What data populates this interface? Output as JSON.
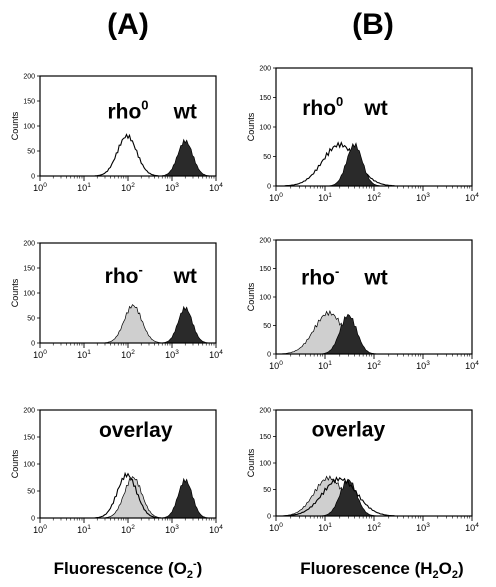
{
  "figure": {
    "panel_a_label": "(A)",
    "panel_b_label": "(B)",
    "xtitle_a": {
      "main": "Fluorescence (O",
      "sub": "2",
      "sup": "-",
      "close": ")"
    },
    "xtitle_b": {
      "main": "Fluorescence (H",
      "sub1": "2",
      "mid": "O",
      "sub2": "2",
      "close": ")"
    }
  },
  "chart_data": [
    {
      "type": "area",
      "id": "A-top",
      "column": "A",
      "row": 0,
      "xscale": "log",
      "xlim": [
        1,
        10000
      ],
      "ylim": [
        0,
        200
      ],
      "ylabel": "Counts",
      "yticks": [
        "0",
        "50",
        "100",
        "150",
        "200"
      ],
      "xticks": [
        {
          "base": "10",
          "exp": "0"
        },
        {
          "base": "10",
          "exp": "1"
        },
        {
          "base": "10",
          "exp": "2"
        },
        {
          "base": "10",
          "exp": "3"
        },
        {
          "base": "10",
          "exp": "4"
        }
      ],
      "labels": [
        {
          "text": "rho",
          "sup": "0",
          "at": [
            100,
            115
          ]
        },
        {
          "text": "wt",
          "at": [
            2000,
            115
          ]
        }
      ],
      "series": [
        {
          "style": "outline",
          "peak_x": 95,
          "peak_y": 80,
          "width": 0.22
        },
        {
          "style": "dark",
          "peak_x": 2000,
          "peak_y": 70,
          "width": 0.17
        }
      ]
    },
    {
      "type": "area",
      "id": "B-top",
      "column": "B",
      "row": 0,
      "xscale": "log",
      "xlim": [
        1,
        10000
      ],
      "ylim": [
        0,
        200
      ],
      "ylabel": "Counts",
      "yticks": [
        "0",
        "50",
        "100",
        "150",
        "200"
      ],
      "xticks": [
        {
          "base": "10",
          "exp": "0"
        },
        {
          "base": "10",
          "exp": "1"
        },
        {
          "base": "10",
          "exp": "2"
        },
        {
          "base": "10",
          "exp": "3"
        },
        {
          "base": "10",
          "exp": "4"
        }
      ],
      "labels": [
        {
          "text": "rho",
          "sup": "0",
          "at": [
            9,
            120
          ]
        },
        {
          "text": "wt",
          "at": [
            110,
            120
          ]
        }
      ],
      "series": [
        {
          "style": "outline",
          "peak_x": 20,
          "peak_y": 70,
          "width": 0.35
        },
        {
          "style": "dark",
          "peak_x": 40,
          "peak_y": 70,
          "width": 0.16
        }
      ]
    },
    {
      "type": "area",
      "id": "A-middle",
      "column": "A",
      "row": 1,
      "xscale": "log",
      "xlim": [
        1,
        10000
      ],
      "ylim": [
        0,
        200
      ],
      "ylabel": "Counts",
      "yticks": [
        "0",
        "50",
        "100",
        "150",
        "200"
      ],
      "xticks": [
        {
          "base": "10",
          "exp": "0"
        },
        {
          "base": "10",
          "exp": "1"
        },
        {
          "base": "10",
          "exp": "2"
        },
        {
          "base": "10",
          "exp": "3"
        },
        {
          "base": "10",
          "exp": "4"
        }
      ],
      "labels": [
        {
          "text": "rho",
          "sup": "-",
          "at": [
            80,
            120
          ]
        },
        {
          "text": "wt",
          "at": [
            2000,
            120
          ]
        }
      ],
      "series": [
        {
          "style": "light",
          "peak_x": 130,
          "peak_y": 75,
          "width": 0.2
        },
        {
          "style": "dark",
          "peak_x": 2000,
          "peak_y": 70,
          "width": 0.16
        }
      ]
    },
    {
      "type": "area",
      "id": "B-middle",
      "column": "B",
      "row": 1,
      "xscale": "log",
      "xlim": [
        1,
        10000
      ],
      "ylim": [
        0,
        200
      ],
      "ylabel": "Counts",
      "yticks": [
        "0",
        "50",
        "100",
        "150",
        "200"
      ],
      "xticks": [
        {
          "base": "10",
          "exp": "0"
        },
        {
          "base": "10",
          "exp": "1"
        },
        {
          "base": "10",
          "exp": "2"
        },
        {
          "base": "10",
          "exp": "3"
        },
        {
          "base": "10",
          "exp": "4"
        }
      ],
      "labels": [
        {
          "text": "rho",
          "sup": "-",
          "at": [
            8,
            122
          ]
        },
        {
          "text": "wt",
          "at": [
            110,
            122
          ]
        }
      ],
      "series": [
        {
          "style": "light",
          "peak_x": 12,
          "peak_y": 72,
          "width": 0.3
        },
        {
          "style": "dark",
          "peak_x": 30,
          "peak_y": 68,
          "width": 0.17
        }
      ]
    },
    {
      "type": "area",
      "id": "A-bottom",
      "column": "A",
      "row": 2,
      "xscale": "log",
      "xlim": [
        1,
        10000
      ],
      "ylim": [
        0,
        200
      ],
      "ylabel": "Counts",
      "yticks": [
        "0",
        "50",
        "100",
        "150",
        "200"
      ],
      "xticks": [
        {
          "base": "10",
          "exp": "0"
        },
        {
          "base": "10",
          "exp": "1"
        },
        {
          "base": "10",
          "exp": "2"
        },
        {
          "base": "10",
          "exp": "3"
        },
        {
          "base": "10",
          "exp": "4"
        }
      ],
      "labels": [
        {
          "text": "overlay",
          "at": [
            150,
            150
          ]
        }
      ],
      "series": [
        {
          "style": "light",
          "peak_x": 130,
          "peak_y": 75,
          "width": 0.2
        },
        {
          "style": "dark",
          "peak_x": 2000,
          "peak_y": 70,
          "width": 0.16
        },
        {
          "style": "outline",
          "peak_x": 95,
          "peak_y": 80,
          "width": 0.22
        }
      ]
    },
    {
      "type": "area",
      "id": "B-bottom",
      "column": "B",
      "row": 2,
      "xscale": "log",
      "xlim": [
        1,
        10000
      ],
      "ylim": [
        0,
        200
      ],
      "ylabel": "Counts",
      "yticks": [
        "0",
        "50",
        "100",
        "150",
        "200"
      ],
      "xticks": [
        {
          "base": "10",
          "exp": "0"
        },
        {
          "base": "10",
          "exp": "1"
        },
        {
          "base": "10",
          "exp": "2"
        },
        {
          "base": "10",
          "exp": "3"
        },
        {
          "base": "10",
          "exp": "4"
        }
      ],
      "labels": [
        {
          "text": "overlay",
          "at": [
            30,
            150
          ]
        }
      ],
      "series": [
        {
          "style": "light",
          "peak_x": 12,
          "peak_y": 72,
          "width": 0.3
        },
        {
          "style": "dark",
          "peak_x": 30,
          "peak_y": 68,
          "width": 0.17
        },
        {
          "style": "outline",
          "peak_x": 20,
          "peak_y": 70,
          "width": 0.35
        }
      ]
    }
  ],
  "colors": {
    "dark": "#2a2a2a",
    "light": "#cfcfcf",
    "outline": "#000000"
  }
}
